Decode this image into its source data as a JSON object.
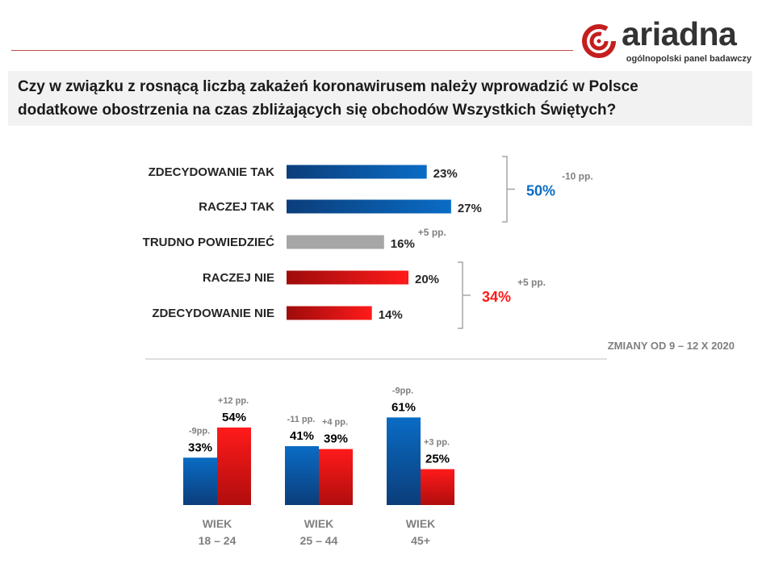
{
  "logo": {
    "name": "ariadna",
    "tagline": "ogólnopolski panel badawczy"
  },
  "question": {
    "line1": "Czy w związku z rosnącą liczbą zakażeń koronawirusem należy wprowadzić w Polsce",
    "line2": "dodatkowe obostrzenia na czas zbliżających się obchodów Wszystkich Świętych?"
  },
  "colors": {
    "blue": "#0a6cc5",
    "blue_dark": "#0b3d7a",
    "red": "#ff1a1a",
    "red_dark": "#9e0b0b",
    "gray": "#a6a6a6",
    "label": "#262626",
    "note": "#7f7f7f"
  },
  "chart_data": [
    {
      "type": "bar",
      "orientation": "horizontal",
      "categories": [
        "ZDECYDOWANIE TAK",
        "RACZEJ TAK",
        "TRUDNO POWIEDZIEĆ",
        "RACZEJ NIE",
        "ZDECYDOWANIE NIE"
      ],
      "values": [
        23,
        27,
        16,
        20,
        14
      ],
      "value_labels": [
        "23%",
        "27%",
        "16%",
        "20%",
        "14%"
      ],
      "bar_groups": [
        "yes",
        "yes",
        "unsure",
        "no",
        "no"
      ],
      "changes": [
        "",
        "",
        "+5 pp.",
        "",
        ""
      ],
      "groups": [
        {
          "name": "yes",
          "total_label": "50%",
          "change": "-10 pp.",
          "rows": [
            0,
            1
          ]
        },
        {
          "name": "no",
          "total_label": "34%",
          "change": "+5 pp.",
          "rows": [
            3,
            4
          ]
        }
      ],
      "note": "ZMIANY OD 9 – 12 X 2020",
      "xlim": [
        0,
        30
      ]
    },
    {
      "type": "bar",
      "orientation": "vertical",
      "categories": [
        {
          "line1": "WIEK",
          "line2": "18 – 24"
        },
        {
          "line1": "WIEK",
          "line2": "25 – 44"
        },
        {
          "line1": "WIEK",
          "line2": "45+"
        }
      ],
      "series": [
        {
          "name": "yes",
          "values": [
            33,
            41,
            61
          ],
          "value_labels": [
            "33%",
            "41%",
            "61%"
          ],
          "changes": [
            "-9pp.",
            "-11 pp.",
            "-9pp."
          ]
        },
        {
          "name": "no",
          "values": [
            54,
            39,
            25
          ],
          "value_labels": [
            "54%",
            "39%",
            "25%"
          ],
          "changes": [
            "+12 pp.",
            "+4 pp.",
            "+3 pp."
          ]
        }
      ],
      "ylim": [
        0,
        100
      ]
    }
  ]
}
